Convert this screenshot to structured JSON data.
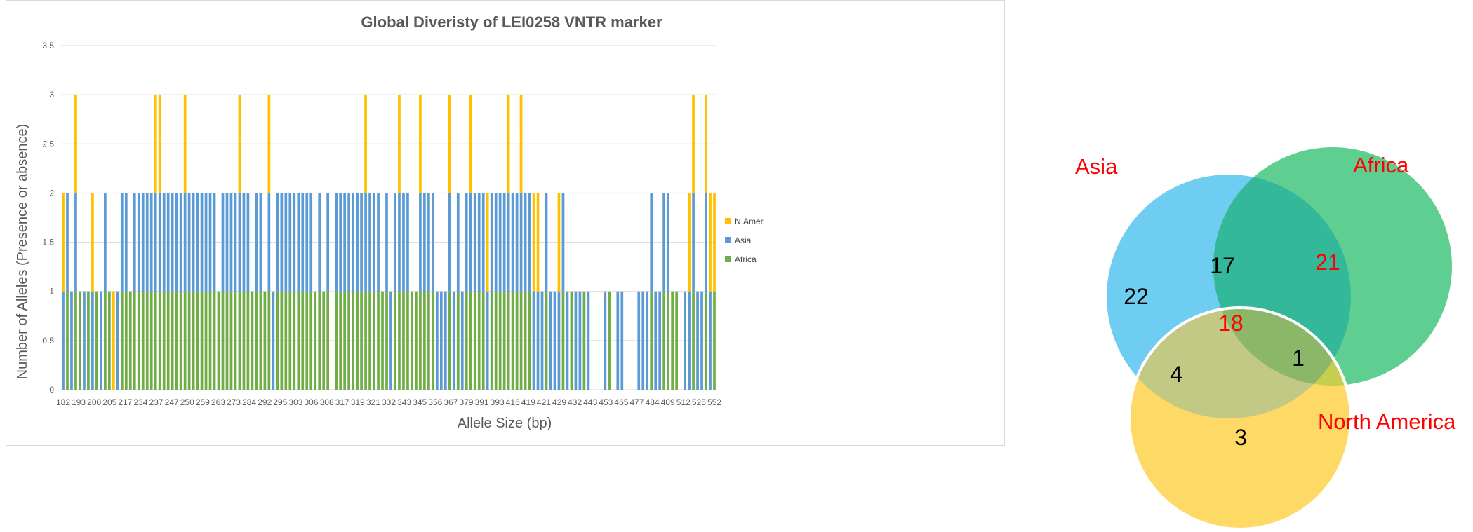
{
  "chart_data": [
    {
      "type": "bar",
      "stacked": true,
      "title": "Global Diveristy of LEI0258 VNTR marker",
      "xlabel": "Allele Size (bp)",
      "ylabel": "Number of Alleles (Presence or absence)",
      "ylim": [
        0,
        3.5
      ],
      "yticks": [
        "0",
        "0.5",
        "1",
        "1.5",
        "2",
        "2.5",
        "3",
        "3.5"
      ],
      "grid": true,
      "legend_position": "right",
      "x_tick_labels": [
        "182",
        "193",
        "200",
        "205",
        "217",
        "234",
        "237",
        "247",
        "250",
        "259",
        "263",
        "273",
        "284",
        "292",
        "295",
        "303",
        "306",
        "308",
        "317",
        "319",
        "321",
        "332",
        "343",
        "345",
        "356",
        "367",
        "379",
        "391",
        "393",
        "416",
        "419",
        "421",
        "429",
        "432",
        "443",
        "453",
        "465",
        "477",
        "484",
        "489",
        "512",
        "525",
        "552"
      ],
      "colors": {
        "Africa": "#70ad47",
        "Asia": "#5b9bd5",
        "N.Amer": "#ffc000"
      },
      "series": [
        {
          "name": "Africa",
          "values": [
            0,
            1,
            0,
            1,
            1,
            0,
            1,
            0,
            1,
            0,
            1,
            1,
            0,
            0,
            1,
            1,
            1,
            1,
            1,
            1,
            1,
            1,
            1,
            1,
            1,
            1,
            1,
            1,
            1,
            1,
            1,
            1,
            1,
            1,
            1,
            1,
            1,
            1,
            1,
            1,
            1,
            1,
            1,
            1,
            1,
            1,
            1,
            1,
            1,
            1,
            0,
            1,
            1,
            1,
            1,
            1,
            1,
            1,
            1,
            1,
            1,
            1,
            1,
            1,
            0,
            1,
            1,
            1,
            1,
            1,
            1,
            1,
            1,
            1,
            1,
            1,
            1,
            1,
            0,
            1,
            1,
            1,
            1,
            1,
            1,
            1,
            1,
            1,
            1,
            0,
            0,
            0,
            1,
            0,
            1,
            0,
            1,
            1,
            1,
            1,
            1,
            0,
            1,
            1,
            1,
            1,
            1,
            1,
            1,
            1,
            1,
            1,
            0,
            0,
            0,
            1,
            0,
            0,
            0,
            1,
            0,
            1,
            0,
            0,
            1,
            0,
            0,
            0,
            0,
            0,
            1,
            0,
            0,
            0,
            0,
            0,
            0,
            0,
            0,
            0,
            1,
            0,
            0,
            1,
            1,
            1,
            1,
            0,
            0,
            0,
            1,
            0,
            0,
            1,
            0,
            1
          ]
        },
        {
          "name": "Asia",
          "values": [
            1,
            1,
            1,
            1,
            0,
            1,
            0,
            1,
            0,
            1,
            1,
            0,
            0,
            1,
            1,
            1,
            0,
            1,
            1,
            1,
            1,
            1,
            1,
            1,
            1,
            1,
            1,
            1,
            1,
            1,
            1,
            1,
            1,
            1,
            1,
            1,
            1,
            0,
            1,
            1,
            1,
            1,
            1,
            1,
            1,
            0,
            1,
            1,
            0,
            1,
            1,
            1,
            1,
            1,
            1,
            1,
            1,
            1,
            1,
            1,
            0,
            1,
            0,
            1,
            0,
            1,
            1,
            1,
            1,
            1,
            1,
            1,
            1,
            1,
            1,
            1,
            0,
            1,
            1,
            1,
            1,
            1,
            1,
            0,
            0,
            1,
            1,
            1,
            1,
            1,
            1,
            1,
            1,
            1,
            1,
            1,
            1,
            1,
            1,
            1,
            1,
            1,
            1,
            1,
            1,
            1,
            1,
            1,
            1,
            1,
            1,
            1,
            1,
            1,
            1,
            1,
            1,
            1,
            1,
            1,
            1,
            0,
            1,
            1,
            0,
            1,
            0,
            0,
            0,
            1,
            0,
            0,
            1,
            1,
            0,
            0,
            0,
            1,
            1,
            1,
            1,
            1,
            1,
            1,
            1,
            0,
            0,
            0,
            1,
            1,
            1,
            1,
            1,
            1,
            1,
            0
          ]
        },
        {
          "name": "N.Amer",
          "values": [
            1,
            0,
            0,
            1,
            0,
            0,
            0,
            1,
            0,
            0,
            0,
            0,
            1,
            0,
            0,
            0,
            0,
            0,
            0,
            0,
            0,
            0,
            1,
            1,
            0,
            0,
            0,
            0,
            0,
            1,
            0,
            0,
            0,
            0,
            0,
            0,
            0,
            0,
            0,
            0,
            0,
            0,
            1,
            0,
            0,
            0,
            0,
            0,
            0,
            1,
            0,
            0,
            0,
            0,
            0,
            0,
            0,
            0,
            0,
            0,
            0,
            0,
            0,
            0,
            0,
            0,
            0,
            0,
            0,
            0,
            0,
            0,
            1,
            0,
            0,
            0,
            0,
            0,
            0,
            0,
            1,
            0,
            0,
            0,
            0,
            1,
            0,
            0,
            0,
            0,
            0,
            0,
            1,
            0,
            0,
            0,
            0,
            1,
            0,
            0,
            0,
            1,
            0,
            0,
            0,
            0,
            1,
            0,
            0,
            1,
            0,
            0,
            1,
            1,
            0,
            0,
            0,
            0,
            1,
            0,
            0,
            0,
            0,
            0,
            0,
            0,
            0,
            0,
            0,
            0,
            0,
            0,
            0,
            0,
            0,
            0,
            0,
            0,
            0,
            0,
            0,
            0,
            0,
            0,
            0,
            0,
            0,
            0,
            0,
            1,
            1,
            0,
            0,
            1,
            1,
            1
          ]
        }
      ]
    },
    {
      "type": "venn",
      "sets": [
        "Asia",
        "Africa",
        "North America"
      ],
      "colors": {
        "Asia": "#6fcdf2",
        "Africa": "#5fce91",
        "North America": "#ffd966"
      },
      "regions": {
        "asia_only": "22",
        "africa_only": "21",
        "america_only": "3",
        "asia_africa": "17",
        "asia_america": "4",
        "africa_america": "1",
        "all_three": "18"
      }
    }
  ]
}
